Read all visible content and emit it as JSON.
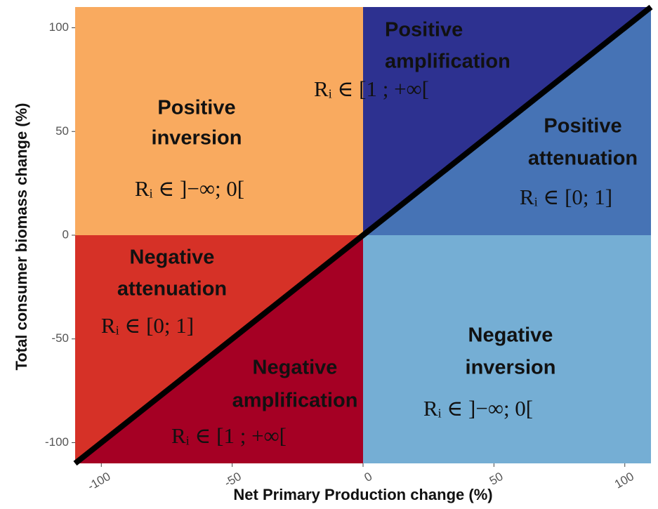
{
  "chart_data": {
    "type": "regions",
    "x_label": "Net Primary Production change (%)",
    "y_label": "Total consumer biomass change (%)",
    "xlim": [
      -110,
      110
    ],
    "ylim": [
      -110,
      110
    ],
    "xticks": [
      -100,
      -50,
      0,
      50,
      100
    ],
    "yticks": [
      -100,
      -50,
      0,
      50,
      100
    ],
    "line_color": "#000000",
    "regions": [
      {
        "name": [
          "Positive",
          "inversion"
        ],
        "ratio": "Rᵢ ∈ ]−∞; 0[",
        "color": "#F9AA5F"
      },
      {
        "name": [
          "Positive",
          "amplification"
        ],
        "ratio": "Rᵢ ∈ [1 ;  +∞[",
        "color": "#2D3190"
      },
      {
        "name": [
          "Positive",
          "attenuation"
        ],
        "ratio": "Rᵢ ∈ [0; 1]",
        "color": "#4673B5"
      },
      {
        "name": [
          "Negative",
          "attenuation"
        ],
        "ratio": "Rᵢ ∈ [0; 1]",
        "color": "#D63127"
      },
      {
        "name": [
          "Negative",
          "amplification"
        ],
        "ratio": "Rᵢ ∈ [1 ;  +∞[",
        "color": "#A50024"
      },
      {
        "name": [
          "Negative",
          "inversion"
        ],
        "ratio": "Rᵢ ∈ ]−∞; 0[",
        "color": "#75AED4"
      }
    ]
  }
}
